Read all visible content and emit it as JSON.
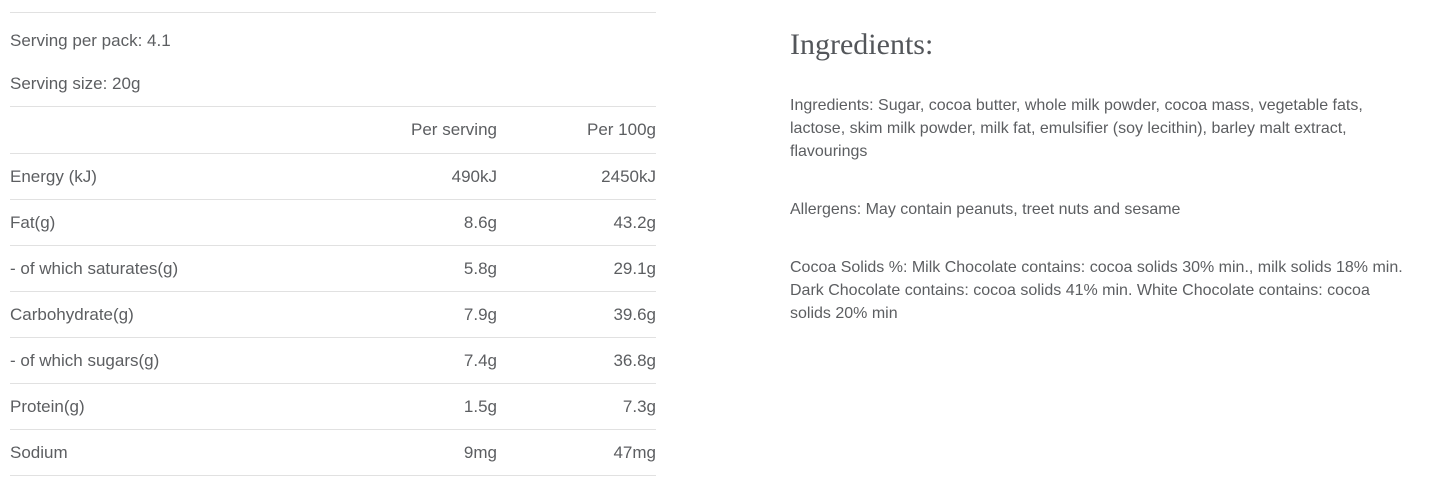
{
  "nutrition": {
    "serving_per_pack": "Serving per pack: 4.1",
    "serving_size": "Serving size: 20g",
    "table": {
      "columns": [
        "",
        "Per serving",
        "Per 100g"
      ],
      "rows": [
        {
          "label": "Energy (kJ)",
          "per_serving": "490kJ",
          "per_100g": "2450kJ"
        },
        {
          "label": "Fat(g)",
          "per_serving": "8.6g",
          "per_100g": "43.2g"
        },
        {
          "label": "- of which saturates(g)",
          "per_serving": "5.8g",
          "per_100g": "29.1g"
        },
        {
          "label": "Carbohydrate(g)",
          "per_serving": "7.9g",
          "per_100g": "39.6g"
        },
        {
          "label": "- of which sugars(g)",
          "per_serving": "7.4g",
          "per_100g": "36.8g"
        },
        {
          "label": "Protein(g)",
          "per_serving": "1.5g",
          "per_100g": "7.3g"
        },
        {
          "label": "Sodium",
          "per_serving": "9mg",
          "per_100g": "47mg"
        }
      ]
    }
  },
  "ingredients": {
    "heading": "Ingredients:",
    "ingredients_lines": [
      "Ingredients: Sugar, cocoa butter, whole milk powder, cocoa mass, vegetable fats,",
      "lactose, skim milk powder, milk fat, emulsifier (soy lecithin), barley malt extract,",
      "flavourings"
    ],
    "allergens_lines": [
      "Allergens: May contain peanuts, treet nuts and sesame"
    ],
    "cocoa_solids_lines": [
      "Cocoa Solids %: Milk Chocolate contains: cocoa solids 30% min., milk solids 18% min.",
      "Dark Chocolate contains: cocoa solids 41% min. White Chocolate contains: cocoa",
      "solids 20% min"
    ]
  },
  "colors": {
    "body_text": "#5c5e61",
    "heading_text": "#53565a",
    "divider": "#e1e1e1",
    "background": "#ffffff"
  }
}
